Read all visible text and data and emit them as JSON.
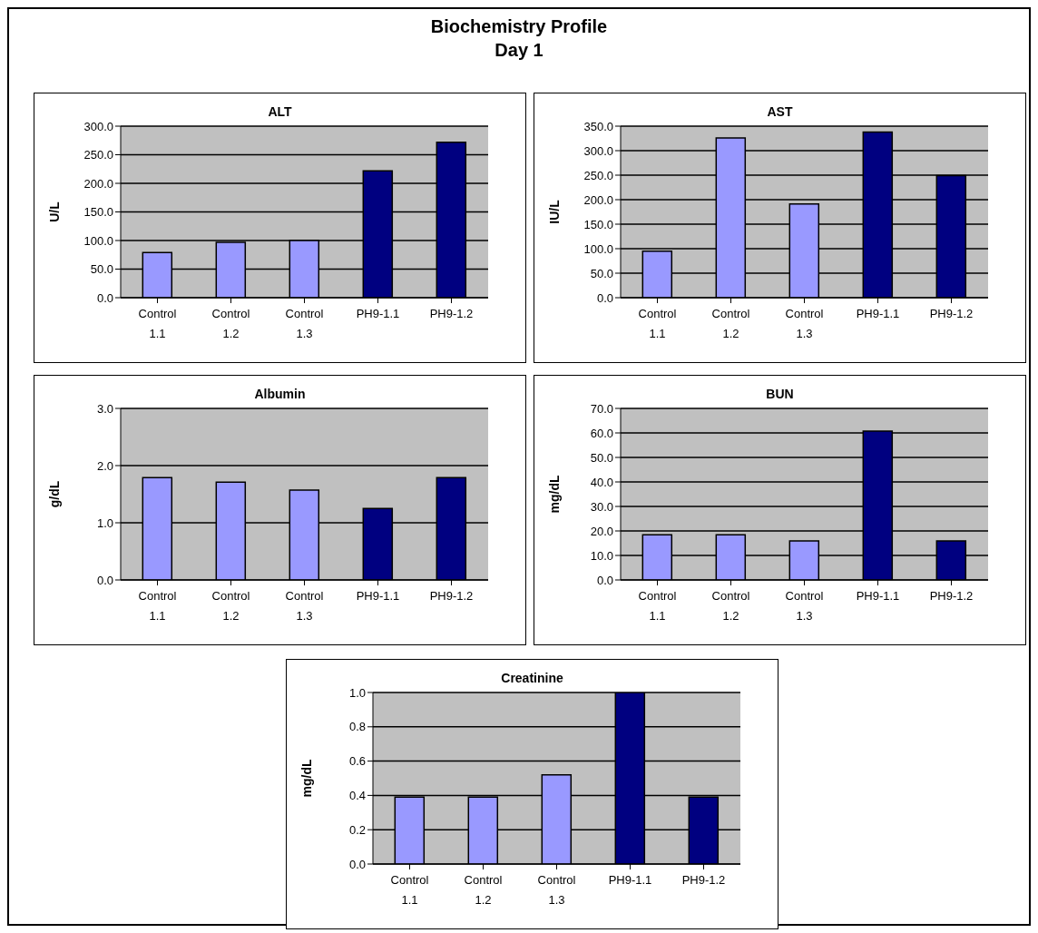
{
  "chart_data": [
    {
      "type": "bar",
      "title": "ALT",
      "ylabel": "U/L",
      "annotations": [
        "Biochemistry Profile",
        "Day 1"
      ],
      "categories": [
        "Control 1.1",
        "Control 1.2",
        "Control 1.3",
        "PH9-1.1",
        "PH9-1.2"
      ],
      "values": [
        79,
        97,
        100,
        222,
        272
      ],
      "colors": [
        "#9999ff",
        "#9999ff",
        "#9999ff",
        "#000080",
        "#000080"
      ],
      "ylim": [
        0,
        300
      ],
      "yticks": [
        {
          "value": 0,
          "label": "0.0"
        },
        {
          "value": 50,
          "label": "50.0"
        },
        {
          "value": 100,
          "label": "100.0"
        },
        {
          "value": 150,
          "label": "150.0"
        },
        {
          "value": 200,
          "label": "200.0"
        },
        {
          "value": 250,
          "label": "250.0"
        },
        {
          "value": 300,
          "label": "300.0"
        }
      ],
      "grid": "y",
      "legend": false
    },
    {
      "type": "bar",
      "title": "AST",
      "ylabel": "IU/L",
      "categories": [
        "Control 1.1",
        "Control 1.2",
        "Control 1.3",
        "PH9-1.1",
        "PH9-1.2"
      ],
      "values": [
        95,
        326,
        191,
        338,
        249
      ],
      "colors": [
        "#9999ff",
        "#9999ff",
        "#9999ff",
        "#000080",
        "#000080"
      ],
      "ylim": [
        0,
        350
      ],
      "yticks": [
        {
          "value": 0,
          "label": "0.0"
        },
        {
          "value": 50,
          "label": "50.0"
        },
        {
          "value": 100,
          "label": "100.0"
        },
        {
          "value": 150,
          "label": "150.0"
        },
        {
          "value": 200,
          "label": "200.0"
        },
        {
          "value": 250,
          "label": "250.0"
        },
        {
          "value": 300,
          "label": "300.0"
        },
        {
          "value": 350,
          "label": "350.0"
        }
      ],
      "grid": "y",
      "legend": false
    },
    {
      "type": "bar",
      "title": "Albumin",
      "ylabel": "g/dL",
      "categories": [
        "Control 1.1",
        "Control 1.2",
        "Control 1.3",
        "PH9-1.1",
        "PH9-1.2"
      ],
      "values": [
        1.79,
        1.71,
        1.57,
        1.25,
        1.79
      ],
      "colors": [
        "#9999ff",
        "#9999ff",
        "#9999ff",
        "#000080",
        "#000080"
      ],
      "ylim": [
        0,
        3
      ],
      "yticks": [
        {
          "value": 0,
          "label": "0.0"
        },
        {
          "value": 1,
          "label": "1.0"
        },
        {
          "value": 2,
          "label": "2.0"
        },
        {
          "value": 3,
          "label": "3.0"
        }
      ],
      "grid": "y",
      "legend": false
    },
    {
      "type": "bar",
      "title": "BUN",
      "ylabel": "mg/dL",
      "categories": [
        "Control 1.1",
        "Control 1.2",
        "Control 1.3",
        "PH9-1.1",
        "PH9-1.2"
      ],
      "values": [
        18.4,
        18.4,
        15.9,
        60.7,
        15.9
      ],
      "colors": [
        "#9999ff",
        "#9999ff",
        "#9999ff",
        "#000080",
        "#000080"
      ],
      "ylim": [
        0,
        70
      ],
      "yticks": [
        {
          "value": 0,
          "label": "0.0"
        },
        {
          "value": 10,
          "label": "10.0"
        },
        {
          "value": 20,
          "label": "20.0"
        },
        {
          "value": 30,
          "label": "30.0"
        },
        {
          "value": 40,
          "label": "40.0"
        },
        {
          "value": 50,
          "label": "50.0"
        },
        {
          "value": 60,
          "label": "60.0"
        },
        {
          "value": 70,
          "label": "70.0"
        }
      ],
      "grid": "y",
      "legend": false
    },
    {
      "type": "bar",
      "title": "Creatinine",
      "ylabel": "mg/dL",
      "categories": [
        "Control 1.1",
        "Control 1.2",
        "Control 1.3",
        "PH9-1.1",
        "PH9-1.2"
      ],
      "values": [
        0.39,
        0.39,
        0.52,
        1.0,
        0.39
      ],
      "colors": [
        "#9999ff",
        "#9999ff",
        "#9999ff",
        "#000080",
        "#000080"
      ],
      "ylim": [
        0,
        1
      ],
      "yticks": [
        {
          "value": 0,
          "label": "0.0"
        },
        {
          "value": 0.2,
          "label": "0.2"
        },
        {
          "value": 0.4,
          "label": "0.4"
        },
        {
          "value": 0.6,
          "label": "0.6"
        },
        {
          "value": 0.8,
          "label": "0.8"
        },
        {
          "value": 1,
          "label": "1.0"
        }
      ],
      "grid": "y",
      "legend": false
    }
  ]
}
